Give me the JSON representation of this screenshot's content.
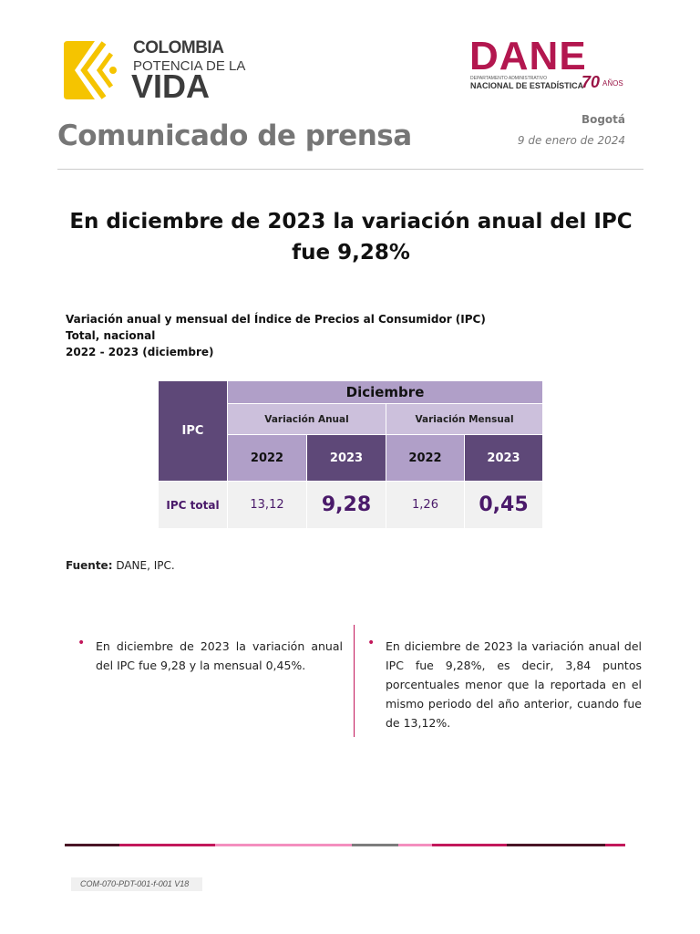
{
  "header": {
    "gov_logo": {
      "line1": "COLOMBIA",
      "line2": "POTENCIA DE LA",
      "line3": "VIDA",
      "color": "#f5c400"
    },
    "dane_logo": {
      "name": "DANE",
      "sub1": "DEPARTAMENTO ADMINISTRATIVO",
      "sub2": "NACIONAL DE ESTADÍSTICA",
      "anniv_num": "70",
      "anniv_word": "AÑOS",
      "color": "#b3174f"
    },
    "doc_type": "Comunicado de prensa",
    "city": "Bogotá",
    "date": "9 de enero de 2024"
  },
  "headline": "En diciembre de 2023 la variación anual del IPC fue 9,28%",
  "caption": {
    "line1": "Variación anual y mensual del Índice de Precios al Consumidor (IPC)",
    "line2": "Total, nacional",
    "line3": "2022 - 2023 (diciembre)"
  },
  "table": {
    "row_header": "IPC",
    "month": "Diciembre",
    "groups": [
      "Variación Anual",
      "Variación Mensual"
    ],
    "years": [
      "2022",
      "2023",
      "2022",
      "2023"
    ],
    "row_label": "IPC total",
    "values": [
      "13,12",
      "9,28",
      "1,26",
      "0,45"
    ]
  },
  "source": {
    "label": "Fuente:",
    "text": " DANE, IPC."
  },
  "bullets": [
    "En diciembre de 2023 la variación anual del IPC fue 9,28 y la mensual 0,45%.",
    "En diciembre de 2023 la variación anual del IPC fue 9,28%, es decir, 3,84 puntos porcentuales menor que la reportada en el mismo periodo del año anterior, cuando fue de 13,12%."
  ],
  "footer": {
    "code": "COM-070-PDT-001-f-001 V18"
  }
}
